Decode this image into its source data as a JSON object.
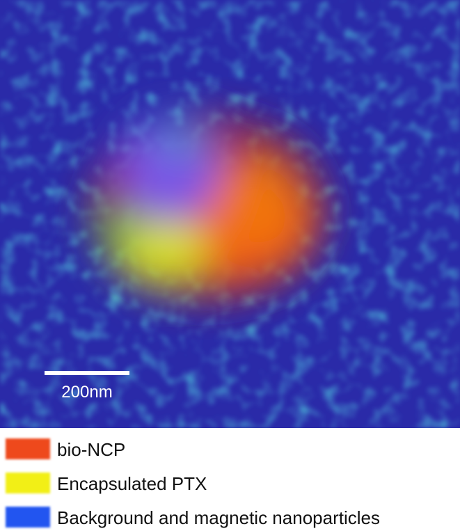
{
  "image": {
    "scale_bar_label": "200nm"
  },
  "legend": {
    "items": [
      {
        "label": "bio-NCP",
        "color": "#ee4a1e"
      },
      {
        "label": "Encapsulated PTX",
        "color": "#f2ef12"
      },
      {
        "label": "Background and magnetic nanoparticles",
        "color": "#2255f0"
      }
    ]
  }
}
